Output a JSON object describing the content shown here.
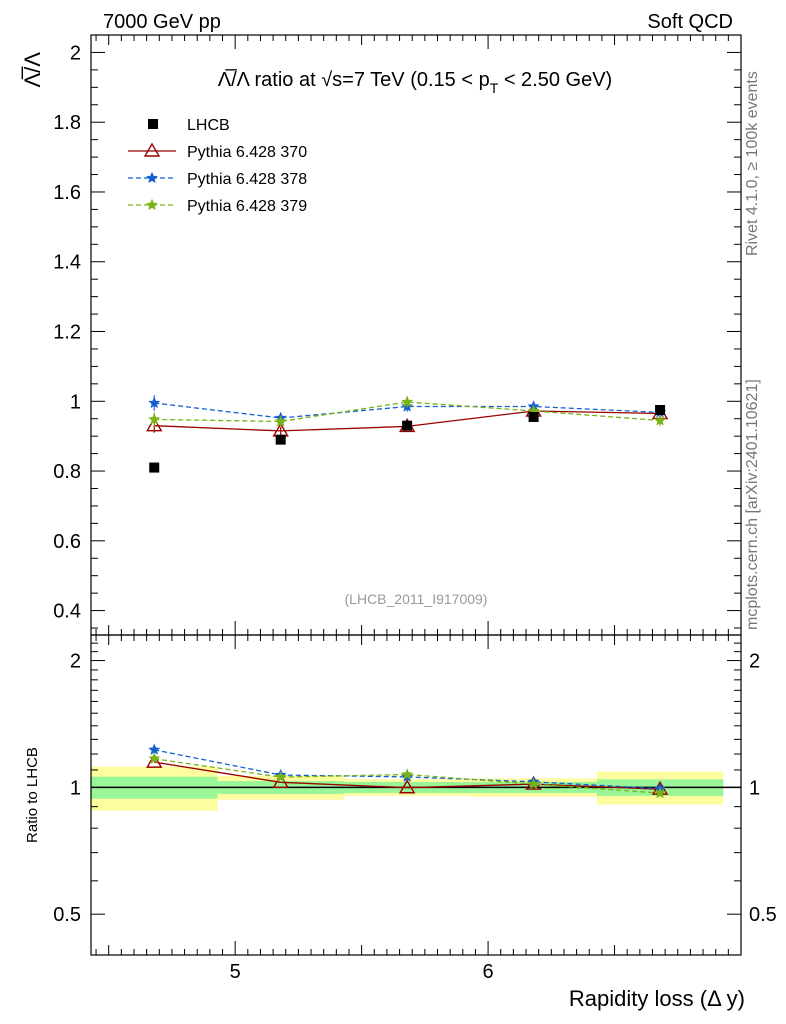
{
  "header": {
    "left_label": "7000 GeV pp",
    "right_label": "Soft QCD"
  },
  "side_notes": {
    "rivet": "Rivet 4.1.0, ≥ 100k events",
    "mcplots": "mcplots.cern.ch [arXiv:2401.10621]"
  },
  "chart_data": {
    "type": "scatter",
    "title_pre": "Λ̅/Λ ratio at √s=7 TeV (0.15 < p",
    "title_sub": "T",
    "title_post": " < 2.50 GeV)",
    "ylabel_main": "Λ̅/Λ",
    "ylabel_ratio": "Ratio to LHCB",
    "xlabel": "Rapidity loss (Δ y)",
    "watermark": "(LHCB_2011_I917009)",
    "x_range": [
      4.43,
      7.0
    ],
    "y_range_main": [
      0.33,
      2.05
    ],
    "y_range_ratio": [
      0.4,
      2.3
    ],
    "main_yticks": [
      {
        "v": 0.4,
        "label": "0.4"
      },
      {
        "v": 0.6,
        "label": "0.6"
      },
      {
        "v": 0.8,
        "label": "0.8"
      },
      {
        "v": 1.0,
        "label": "1"
      },
      {
        "v": 1.2,
        "label": "1.2"
      },
      {
        "v": 1.4,
        "label": "1.4"
      },
      {
        "v": 1.6,
        "label": "1.6"
      },
      {
        "v": 1.8,
        "label": "1.8"
      },
      {
        "v": 2.0,
        "label": "2"
      }
    ],
    "ratio_yticks": [
      {
        "v": 0.5,
        "label": "0.5"
      },
      {
        "v": 1.0,
        "label": "1"
      },
      {
        "v": 2.0,
        "label": "2"
      }
    ],
    "xticks": [
      {
        "v": 5,
        "label": "5"
      },
      {
        "v": 6,
        "label": "6"
      }
    ],
    "data": {
      "name": "LHCB",
      "color": "#000000",
      "x": [
        4.68,
        5.18,
        5.68,
        6.18,
        6.68
      ],
      "y": [
        0.81,
        0.89,
        0.93,
        0.955,
        0.975
      ],
      "x_bins": [
        [
          4.43,
          4.93
        ],
        [
          4.93,
          5.43
        ],
        [
          5.43,
          5.93
        ],
        [
          5.93,
          6.43
        ],
        [
          6.43,
          6.93
        ]
      ],
      "band_stat": [
        0.06,
        0.035,
        0.03,
        0.03,
        0.045
      ],
      "band_total": [
        0.12,
        0.065,
        0.045,
        0.05,
        0.09
      ]
    },
    "series": [
      {
        "name": "Pythia 6.428 370",
        "color": "#990000",
        "dash": "",
        "marker": "triangle",
        "x": [
          4.68,
          5.18,
          5.68,
          6.18,
          6.68
        ],
        "y": [
          0.93,
          0.915,
          0.928,
          0.972,
          0.965
        ],
        "yerr": [
          0.02,
          0.012,
          0.012,
          0.012,
          0.015
        ],
        "ratio": [
          1.148,
          1.028,
          0.998,
          1.018,
          0.99
        ]
      },
      {
        "name": "Pythia 6.428 378",
        "color": "#1560d0",
        "dash": "5,3",
        "marker": "star",
        "x": [
          4.68,
          5.18,
          5.68,
          6.18,
          6.68
        ],
        "y": [
          0.995,
          0.952,
          0.985,
          0.985,
          0.968
        ],
        "yerr": [
          0.022,
          0.015,
          0.015,
          0.015,
          0.017
        ],
        "ratio": [
          1.228,
          1.07,
          1.059,
          1.031,
          0.993
        ]
      },
      {
        "name": "Pythia 6.428 379",
        "color": "#7ab317",
        "dash": "5,3",
        "marker": "star",
        "x": [
          4.68,
          5.18,
          5.68,
          6.18,
          6.68
        ],
        "y": [
          0.948,
          0.942,
          0.998,
          0.972,
          0.945
        ],
        "yerr": [
          0.02,
          0.013,
          0.016,
          0.014,
          0.016
        ],
        "ratio": [
          1.17,
          1.058,
          1.073,
          1.018,
          0.969
        ]
      }
    ]
  }
}
